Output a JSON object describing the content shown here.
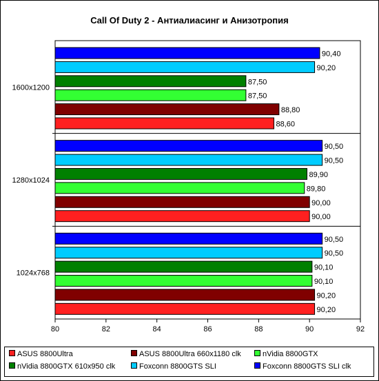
{
  "chart_data": {
    "type": "bar",
    "orientation": "horizontal",
    "title": "Call Of Duty 2 - Антиалиасинг и Анизотропия",
    "xlabel": "",
    "ylabel": "",
    "xlim": [
      80,
      92
    ],
    "x_ticks": [
      "80",
      "82",
      "84",
      "86",
      "88",
      "90",
      "92"
    ],
    "categories": [
      "1600x1200",
      "1280x1024",
      "1024x768"
    ],
    "grid": false,
    "legend_placement": "bottom",
    "series": [
      {
        "name": "ASUS 8800Ultra",
        "color": "#ff2020",
        "values": [
          88.6,
          90.0,
          90.2
        ],
        "labels": [
          "88,60",
          "90,00",
          "90,20"
        ]
      },
      {
        "name": "ASUS 8800Ultra 660x1180 clk",
        "color": "#800000",
        "values": [
          88.8,
          90.0,
          90.2
        ],
        "labels": [
          "88,80",
          "90,00",
          "90,20"
        ]
      },
      {
        "name": "nVidia 8800GTX",
        "color": "#33ff33",
        "values": [
          87.5,
          89.8,
          90.1
        ],
        "labels": [
          "87,50",
          "89,80",
          "90,10"
        ]
      },
      {
        "name": "nVidia 8800GTX 610x950 clk",
        "color": "#008000",
        "values": [
          87.5,
          89.9,
          90.1
        ],
        "labels": [
          "87,50",
          "89,90",
          "90,10"
        ]
      },
      {
        "name": "Foxconn 8800GTS SLI",
        "color": "#00ccff",
        "values": [
          90.2,
          90.5,
          90.5
        ],
        "labels": [
          "90,20",
          "90,50",
          "90,50"
        ]
      },
      {
        "name": "Foxconn 8800GTS SLI clk",
        "color": "#0000ff",
        "values": [
          90.4,
          90.5,
          90.5
        ],
        "labels": [
          "90,40",
          "90,50",
          "90,50"
        ]
      }
    ]
  }
}
